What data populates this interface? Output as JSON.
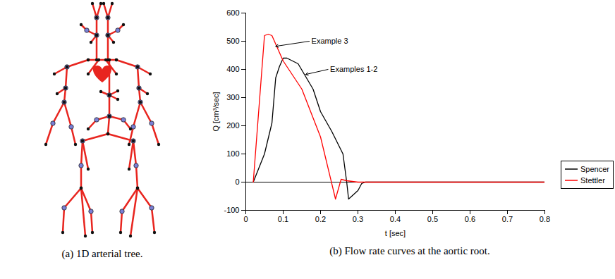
{
  "captions": [
    "(a) 1D arterial tree.",
    "(b) Flow rate curves at the aortic root."
  ],
  "chart_data": {
    "type": "line",
    "x_label": "t [sec]",
    "y_label": "Q [cm³/sec]",
    "xlim": [
      0,
      0.8
    ],
    "xticks": [
      0,
      0.1,
      0.2,
      0.3,
      0.4,
      0.5,
      0.6,
      0.7,
      0.8
    ],
    "ylim": [
      -100,
      600
    ],
    "yticks": [
      -100,
      0,
      100,
      200,
      300,
      400,
      500,
      600
    ],
    "grid": false,
    "legend": "right",
    "series": [
      {
        "name": "Spencer",
        "color": "#000000",
        "x": [
          0.02,
          0.05,
          0.07,
          0.08,
          0.09,
          0.1,
          0.11,
          0.14,
          0.18,
          0.2,
          0.23,
          0.26,
          0.27,
          0.275,
          0.3,
          0.31,
          0.32,
          0.8
        ],
        "values": [
          0,
          100,
          210,
          370,
          410,
          440,
          440,
          420,
          330,
          250,
          180,
          100,
          0,
          -60,
          -30,
          -5,
          0,
          0
        ]
      },
      {
        "name": "Stettler",
        "color": "#ff0000",
        "x": [
          0.02,
          0.05,
          0.06,
          0.07,
          0.1,
          0.15,
          0.2,
          0.24,
          0.255,
          0.27,
          0.3,
          0.8
        ],
        "values": [
          0,
          520,
          525,
          520,
          430,
          330,
          160,
          -60,
          10,
          5,
          0,
          0
        ]
      }
    ],
    "annotations": [
      {
        "text": "Example 3",
        "x": 0.17,
        "y": 500,
        "x_to": 0.08,
        "y_to": 482
      },
      {
        "text": "Examples 1-2",
        "x": 0.22,
        "y": 400,
        "x_to": 0.16,
        "y_to": 382
      }
    ]
  }
}
